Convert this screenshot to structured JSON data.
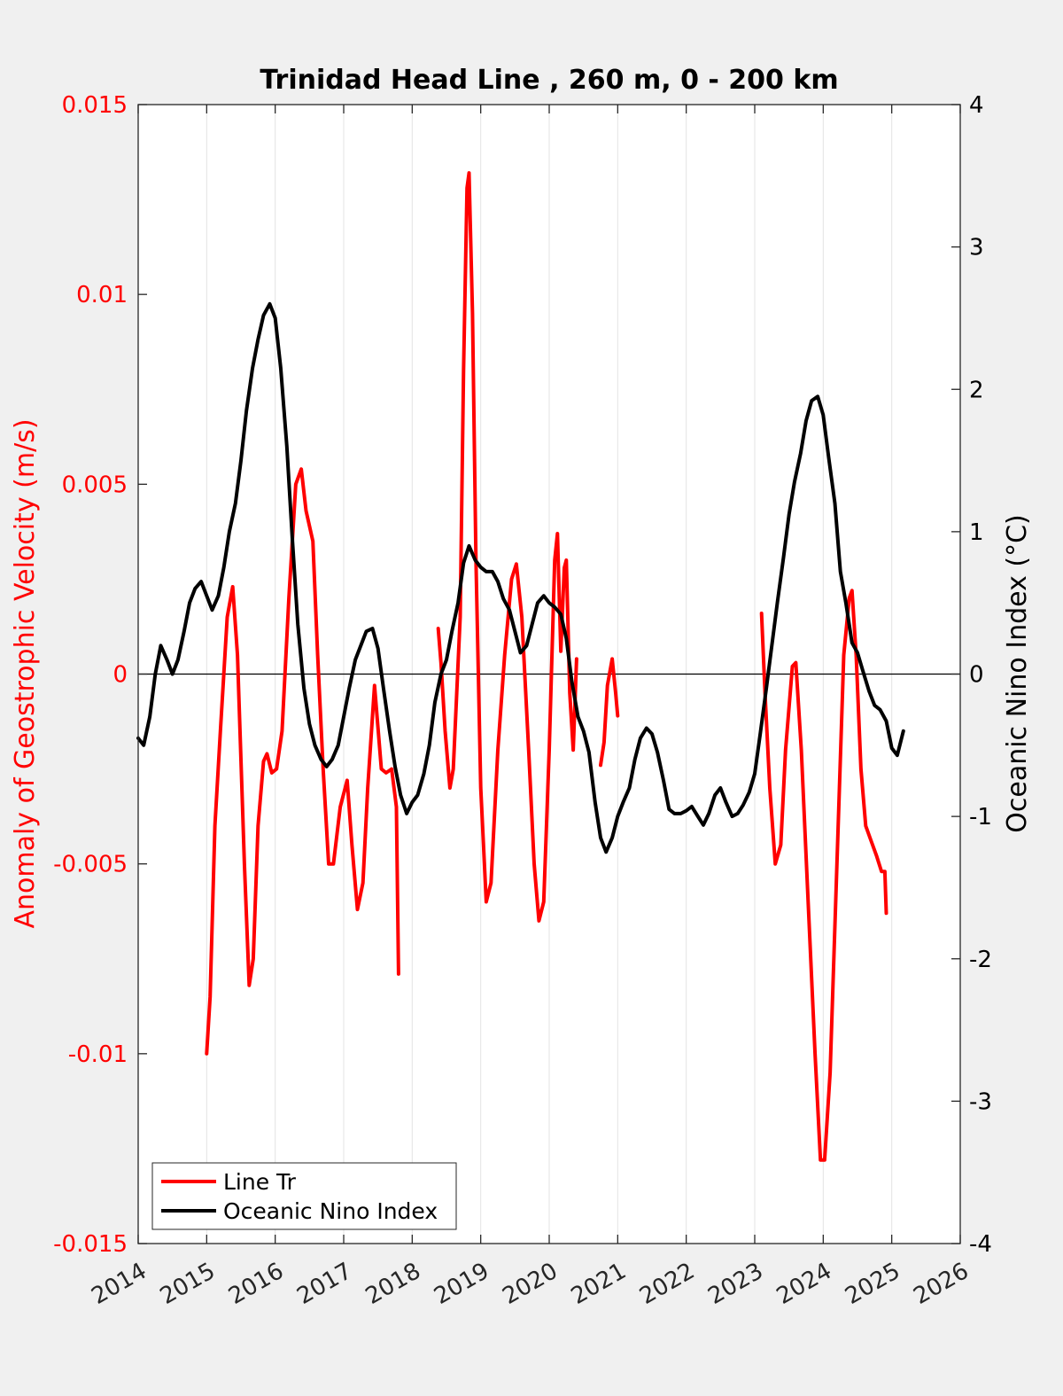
{
  "chart_data": {
    "type": "line",
    "title": "Trinidad Head Line , 260 m, 0 - 200 km",
    "ylabel_left": "Anomaly of Geostrophic Velocity (m/s)",
    "ylabel_right": "Oceanic Nino Index (°C)",
    "xlabel": "",
    "xlim": [
      2014,
      2026
    ],
    "ylim_left": [
      -0.015,
      0.015
    ],
    "ylim_right": [
      -4,
      4
    ],
    "x_ticks": [
      "2014",
      "2015",
      "2016",
      "2017",
      "2018",
      "2019",
      "2020",
      "2021",
      "2022",
      "2023",
      "2024",
      "2025",
      "2026"
    ],
    "y_ticks_left": [
      "0.015",
      "0.01",
      "0.005",
      "0",
      "-0.005",
      "-0.01",
      "-0.015"
    ],
    "y_ticks_right": [
      "4",
      "3",
      "2",
      "1",
      "0",
      "-1",
      "-2",
      "-3",
      "-4"
    ],
    "grid": "vertical",
    "legend_position": "bottom-left",
    "colors": {
      "line_tr": "#ff0000",
      "oni": "#000000",
      "left_axis": "#ff0000",
      "right_axis": "#000000"
    },
    "series": [
      {
        "name": "Line Tr",
        "axis": "left",
        "segments": [
          [
            [
              2015.0,
              -0.01
            ],
            [
              2015.05,
              -0.0085
            ],
            [
              2015.12,
              -0.004
            ],
            [
              2015.2,
              -0.0015
            ],
            [
              2015.3,
              0.0015
            ],
            [
              2015.38,
              0.0023
            ],
            [
              2015.45,
              0.0005
            ],
            [
              2015.55,
              -0.005
            ],
            [
              2015.62,
              -0.0082
            ],
            [
              2015.68,
              -0.0075
            ],
            [
              2015.75,
              -0.004
            ],
            [
              2015.83,
              -0.0023
            ],
            [
              2015.88,
              -0.0021
            ],
            [
              2015.95,
              -0.0026
            ],
            [
              2016.02,
              -0.0025
            ],
            [
              2016.1,
              -0.0015
            ],
            [
              2016.2,
              0.002
            ],
            [
              2016.3,
              0.005
            ],
            [
              2016.38,
              0.0054
            ],
            [
              2016.45,
              0.0043
            ],
            [
              2016.55,
              0.0035
            ],
            [
              2016.62,
              0.0005
            ],
            [
              2016.7,
              -0.0025
            ],
            [
              2016.78,
              -0.005
            ],
            [
              2016.85,
              -0.005
            ],
            [
              2016.95,
              -0.0035
            ],
            [
              2017.05,
              -0.0028
            ],
            [
              2017.12,
              -0.0045
            ],
            [
              2017.2,
              -0.0062
            ],
            [
              2017.28,
              -0.0055
            ],
            [
              2017.35,
              -0.003
            ],
            [
              2017.45,
              -0.0003
            ],
            [
              2017.55,
              -0.0025
            ],
            [
              2017.62,
              -0.0026
            ],
            [
              2017.7,
              -0.0025
            ],
            [
              2017.77,
              -0.0035
            ],
            [
              2017.8,
              -0.0079
            ]
          ],
          [
            [
              2018.38,
              0.0012
            ],
            [
              2018.42,
              0.0003
            ],
            [
              2018.48,
              -0.0015
            ],
            [
              2018.55,
              -0.003
            ],
            [
              2018.6,
              -0.0025
            ],
            [
              2018.65,
              -0.0005
            ],
            [
              2018.7,
              0.0015
            ],
            [
              2018.75,
              0.008
            ],
            [
              2018.8,
              0.0128
            ],
            [
              2018.83,
              0.0132
            ],
            [
              2018.88,
              0.0095
            ],
            [
              2018.93,
              0.003
            ],
            [
              2019.0,
              -0.003
            ],
            [
              2019.08,
              -0.006
            ],
            [
              2019.15,
              -0.0055
            ],
            [
              2019.25,
              -0.002
            ],
            [
              2019.35,
              0.0005
            ],
            [
              2019.45,
              0.0025
            ],
            [
              2019.52,
              0.0029
            ],
            [
              2019.6,
              0.0015
            ],
            [
              2019.7,
              -0.002
            ],
            [
              2019.78,
              -0.005
            ],
            [
              2019.85,
              -0.0065
            ],
            [
              2019.92,
              -0.006
            ],
            [
              2020.0,
              -0.002
            ],
            [
              2020.08,
              0.003
            ],
            [
              2020.12,
              0.0037
            ],
            [
              2020.17,
              0.0006
            ],
            [
              2020.22,
              0.0028
            ],
            [
              2020.25,
              0.003
            ],
            [
              2020.3,
              -0.0005
            ],
            [
              2020.35,
              -0.002
            ],
            [
              2020.4,
              0.0004
            ]
          ],
          [
            [
              2020.75,
              -0.0024
            ],
            [
              2020.8,
              -0.0018
            ],
            [
              2020.85,
              -0.0003
            ],
            [
              2020.92,
              0.0004
            ],
            [
              2020.97,
              -0.0005
            ],
            [
              2021.0,
              -0.0011
            ]
          ],
          [
            [
              2023.1,
              0.0016
            ],
            [
              2023.15,
              -0.0005
            ],
            [
              2023.22,
              -0.003
            ],
            [
              2023.3,
              -0.005
            ],
            [
              2023.38,
              -0.0045
            ],
            [
              2023.45,
              -0.002
            ],
            [
              2023.55,
              0.0002
            ],
            [
              2023.6,
              0.0003
            ],
            [
              2023.68,
              -0.002
            ],
            [
              2023.78,
              -0.006
            ],
            [
              2023.88,
              -0.01
            ],
            [
              2023.96,
              -0.0128
            ],
            [
              2024.02,
              -0.0128
            ],
            [
              2024.1,
              -0.0105
            ],
            [
              2024.2,
              -0.005
            ],
            [
              2024.3,
              0.0005
            ],
            [
              2024.38,
              0.002
            ],
            [
              2024.42,
              0.0022
            ],
            [
              2024.48,
              0.0005
            ],
            [
              2024.55,
              -0.0025
            ],
            [
              2024.62,
              -0.004
            ],
            [
              2024.7,
              -0.0044
            ],
            [
              2024.78,
              -0.0048
            ],
            [
              2024.85,
              -0.0052
            ],
            [
              2024.9,
              -0.0052
            ],
            [
              2024.92,
              -0.0063
            ]
          ]
        ]
      },
      {
        "name": "Oceanic Nino Index",
        "axis": "right",
        "segments": [
          [
            [
              2014.0,
              -0.45
            ],
            [
              2014.08,
              -0.5
            ],
            [
              2014.17,
              -0.3
            ],
            [
              2014.25,
              0.0
            ],
            [
              2014.33,
              0.2
            ],
            [
              2014.42,
              0.1
            ],
            [
              2014.5,
              0.0
            ],
            [
              2014.58,
              0.1
            ],
            [
              2014.67,
              0.3
            ],
            [
              2014.75,
              0.5
            ],
            [
              2014.83,
              0.6
            ],
            [
              2014.92,
              0.65
            ],
            [
              2015.0,
              0.55
            ],
            [
              2015.08,
              0.45
            ],
            [
              2015.17,
              0.55
            ],
            [
              2015.25,
              0.75
            ],
            [
              2015.33,
              1.0
            ],
            [
              2015.42,
              1.2
            ],
            [
              2015.5,
              1.5
            ],
            [
              2015.58,
              1.85
            ],
            [
              2015.67,
              2.15
            ],
            [
              2015.75,
              2.35
            ],
            [
              2015.83,
              2.52
            ],
            [
              2015.92,
              2.6
            ],
            [
              2016.0,
              2.5
            ],
            [
              2016.08,
              2.15
            ],
            [
              2016.17,
              1.6
            ],
            [
              2016.25,
              0.95
            ],
            [
              2016.33,
              0.35
            ],
            [
              2016.42,
              -0.1
            ],
            [
              2016.5,
              -0.35
            ],
            [
              2016.58,
              -0.5
            ],
            [
              2016.67,
              -0.6
            ],
            [
              2016.75,
              -0.65
            ],
            [
              2016.83,
              -0.6
            ],
            [
              2016.92,
              -0.5
            ],
            [
              2017.0,
              -0.3
            ],
            [
              2017.08,
              -0.1
            ],
            [
              2017.17,
              0.1
            ],
            [
              2017.25,
              0.2
            ],
            [
              2017.33,
              0.3
            ],
            [
              2017.42,
              0.32
            ],
            [
              2017.5,
              0.18
            ],
            [
              2017.58,
              -0.1
            ],
            [
              2017.67,
              -0.4
            ],
            [
              2017.75,
              -0.65
            ],
            [
              2017.83,
              -0.85
            ],
            [
              2017.92,
              -0.98
            ],
            [
              2018.0,
              -0.9
            ],
            [
              2018.08,
              -0.85
            ],
            [
              2018.17,
              -0.7
            ],
            [
              2018.25,
              -0.5
            ],
            [
              2018.33,
              -0.2
            ],
            [
              2018.42,
              0.0
            ],
            [
              2018.5,
              0.1
            ],
            [
              2018.58,
              0.3
            ],
            [
              2018.67,
              0.5
            ],
            [
              2018.75,
              0.78
            ],
            [
              2018.83,
              0.9
            ],
            [
              2018.92,
              0.8
            ],
            [
              2019.0,
              0.75
            ],
            [
              2019.08,
              0.72
            ],
            [
              2019.17,
              0.72
            ],
            [
              2019.25,
              0.65
            ],
            [
              2019.33,
              0.53
            ],
            [
              2019.42,
              0.45
            ],
            [
              2019.5,
              0.3
            ],
            [
              2019.58,
              0.15
            ],
            [
              2019.67,
              0.2
            ],
            [
              2019.75,
              0.35
            ],
            [
              2019.83,
              0.5
            ],
            [
              2019.92,
              0.55
            ],
            [
              2020.0,
              0.5
            ],
            [
              2020.08,
              0.47
            ],
            [
              2020.17,
              0.42
            ],
            [
              2020.25,
              0.25
            ],
            [
              2020.33,
              -0.05
            ],
            [
              2020.42,
              -0.3
            ],
            [
              2020.5,
              -0.4
            ],
            [
              2020.58,
              -0.55
            ],
            [
              2020.67,
              -0.9
            ],
            [
              2020.75,
              -1.15
            ],
            [
              2020.83,
              -1.25
            ],
            [
              2020.92,
              -1.15
            ],
            [
              2021.0,
              -1.0
            ],
            [
              2021.08,
              -0.9
            ],
            [
              2021.17,
              -0.8
            ],
            [
              2021.25,
              -0.6
            ],
            [
              2021.33,
              -0.45
            ],
            [
              2021.42,
              -0.38
            ],
            [
              2021.5,
              -0.42
            ],
            [
              2021.58,
              -0.55
            ],
            [
              2021.67,
              -0.75
            ],
            [
              2021.75,
              -0.95
            ],
            [
              2021.83,
              -0.98
            ],
            [
              2021.92,
              -0.98
            ],
            [
              2022.0,
              -0.96
            ],
            [
              2022.08,
              -0.93
            ],
            [
              2022.17,
              -1.0
            ],
            [
              2022.25,
              -1.06
            ],
            [
              2022.33,
              -0.98
            ],
            [
              2022.42,
              -0.85
            ],
            [
              2022.5,
              -0.8
            ],
            [
              2022.58,
              -0.9
            ],
            [
              2022.67,
              -1.0
            ],
            [
              2022.75,
              -0.98
            ],
            [
              2022.83,
              -0.92
            ],
            [
              2022.92,
              -0.83
            ],
            [
              2023.0,
              -0.7
            ],
            [
              2023.08,
              -0.42
            ],
            [
              2023.17,
              -0.1
            ],
            [
              2023.25,
              0.2
            ],
            [
              2023.33,
              0.5
            ],
            [
              2023.42,
              0.82
            ],
            [
              2023.5,
              1.12
            ],
            [
              2023.58,
              1.35
            ],
            [
              2023.67,
              1.55
            ],
            [
              2023.75,
              1.78
            ],
            [
              2023.83,
              1.92
            ],
            [
              2023.92,
              1.95
            ],
            [
              2024.0,
              1.82
            ],
            [
              2024.08,
              1.52
            ],
            [
              2024.17,
              1.2
            ],
            [
              2024.25,
              0.72
            ],
            [
              2024.33,
              0.5
            ],
            [
              2024.42,
              0.22
            ],
            [
              2024.5,
              0.15
            ],
            [
              2024.58,
              0.02
            ],
            [
              2024.67,
              -0.12
            ],
            [
              2024.75,
              -0.22
            ],
            [
              2024.83,
              -0.25
            ],
            [
              2024.92,
              -0.33
            ],
            [
              2025.0,
              -0.52
            ],
            [
              2025.08,
              -0.57
            ],
            [
              2025.17,
              -0.4
            ]
          ]
        ]
      }
    ]
  }
}
